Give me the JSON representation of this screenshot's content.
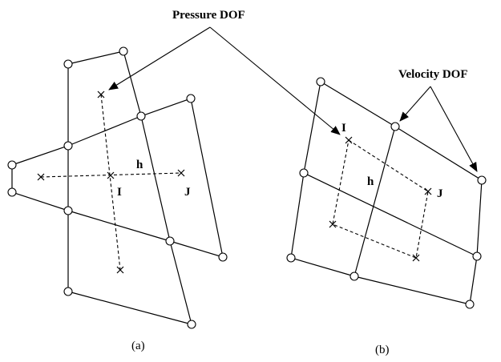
{
  "labels": {
    "pressure_dof": "Pressure DOF",
    "velocity_dof": "Velocity DOF",
    "panel_a_caption": "(a)",
    "panel_b_caption": "(b)",
    "h_a": "h",
    "i_a": "I",
    "j_a": "J",
    "h_b": "h",
    "i_b": "I",
    "j_b": "J"
  },
  "legend": {
    "velocity_marker": "circle",
    "pressure_marker": "cross"
  },
  "colors": {
    "stroke": "#000000",
    "background": "#ffffff"
  }
}
